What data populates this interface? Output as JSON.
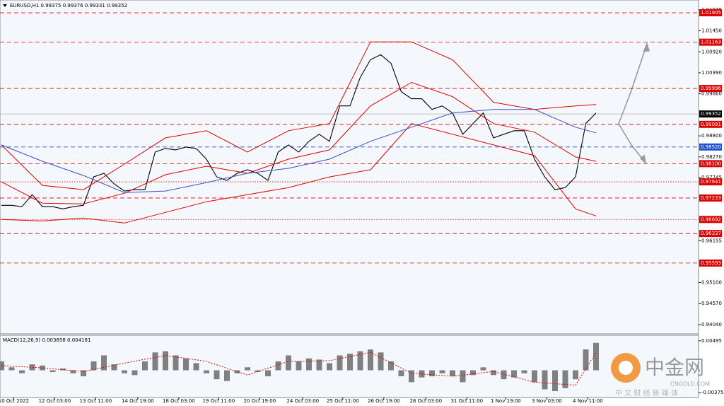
{
  "chart_data": [
    {
      "type": "line",
      "title": "EURUSD,H1  0.99375 0.99376 0.99331 0.99352",
      "xlim": [
        0,
        68
      ],
      "ylim": [
        0.93825,
        1.02209
      ],
      "yticks": [
        1.01976,
        {
          "value": 1.0145,
          "label": "1.01450"
        },
        {
          "value": 1.0092,
          "label": "1.00920"
        },
        {
          "value": 1.0039,
          "label": "1.00390"
        },
        {
          "value": 0.9986,
          "label": "0.99860"
        },
        {
          "value": 0.988,
          "label": "0.98800"
        },
        {
          "value": 0.9827,
          "label": "0.98270"
        },
        0.97745,
        0.96155,
        {
          "value": 0.951,
          "label": "0.95100"
        },
        {
          "value": 0.9457,
          "label": "0.94570"
        },
        {
          "value": 0.9404,
          "label": "0.94040"
        }
      ],
      "x": [
        0,
        1,
        2,
        3,
        4,
        5,
        6,
        7,
        8,
        9,
        10,
        11,
        12,
        13,
        14,
        15,
        16,
        17,
        18,
        19,
        20,
        21,
        22,
        23,
        24,
        25,
        26,
        27,
        28,
        29,
        30,
        31,
        32,
        33,
        34,
        35,
        36,
        37,
        38,
        39,
        40,
        41,
        42,
        43,
        44,
        45,
        46,
        47,
        48,
        49,
        50,
        51,
        52,
        53,
        54,
        55,
        56,
        57,
        58
      ],
      "series": [
        {
          "color": "#000000",
          "values": [
            0.97049,
            0.97049,
            0.97014,
            0.97318,
            0.97014,
            0.97014,
            0.9696,
            0.97014,
            0.97049,
            0.97766,
            0.97856,
            0.97587,
            0.97408,
            0.97444,
            0.97444,
            0.98393,
            0.98483,
            0.98447,
            0.98518,
            0.98483,
            0.98214,
            0.97766,
            0.97676,
            0.97856,
            0.97945,
            0.97856,
            0.97676,
            0.98393,
            0.98572,
            0.98393,
            0.98662,
            0.98841,
            0.98662,
            0.99557,
            0.99557,
            1.00274,
            1.00722,
            1.00847,
            1.00632,
            0.99916,
            0.99737,
            0.99737,
            0.99468,
            0.99557,
            0.99378,
            0.98841,
            0.9911,
            0.99378,
            0.98751,
            0.98841,
            0.9893,
            0.9893,
            0.98214,
            0.97766,
            0.97444,
            0.97497,
            0.97766,
            0.9911,
            0.99378
          ]
        },
        {
          "color": "#e00000",
          "x": [
            0,
            4,
            8,
            12,
            16,
            20,
            24,
            28,
            32,
            36,
            40,
            44,
            48,
            52,
            56,
            58
          ],
          "values": [
            0.98572,
            0.97551,
            0.97444,
            0.98088,
            0.98751,
            0.9893,
            0.98393,
            0.9893,
            0.9911,
            1.0117,
            1.0117,
            1.00722,
            0.99647,
            0.99468,
            0.99557,
            0.99593
          ]
        },
        {
          "color": "#e00000",
          "x": [
            0,
            4,
            8,
            12,
            16,
            20,
            24,
            28,
            32,
            36,
            40,
            44,
            48,
            52,
            56,
            58
          ],
          "values": [
            0.96691,
            0.96655,
            0.96727,
            0.96602,
            0.9687,
            0.97139,
            0.97318,
            0.97497,
            0.97766,
            0.97945,
            0.9911,
            0.98841,
            0.98572,
            0.98303,
            0.9696,
            0.96781
          ]
        },
        {
          "color": "#e00000",
          "x": [
            0,
            4,
            8,
            12,
            16,
            20,
            24,
            28,
            32,
            36,
            40,
            44,
            48,
            52,
            56,
            58
          ],
          "values": [
            0.97641,
            0.97103,
            0.97085,
            0.97354,
            0.9782,
            0.98035,
            0.97856,
            0.98214,
            0.98447,
            0.99557,
            1.00149,
            0.9979,
            0.9911,
            0.98895,
            0.98268,
            0.9816
          ]
        },
        {
          "color": "#3a4ec8",
          "x": [
            0,
            4,
            8,
            12,
            16,
            20,
            24,
            28,
            32,
            36,
            40,
            44,
            48,
            52,
            56,
            58
          ],
          "values": [
            0.98572,
            0.9816,
            0.97802,
            0.97372,
            0.97408,
            0.97623,
            0.97856,
            0.97981,
            0.98214,
            0.98662,
            0.9902,
            0.99378,
            0.99468,
            0.99468,
            0.9902,
            0.98877
          ]
        }
      ],
      "levels": [
        {
          "value": 1.01905,
          "color": "#e00000",
          "style": "dashed"
        },
        {
          "value": 1.01163,
          "color": "#e00000",
          "style": "dashed"
        },
        {
          "value": 0.99996,
          "color": "#e00000",
          "style": "dashed"
        },
        {
          "value": 0.99352,
          "color": "#000000",
          "style": "solid"
        },
        {
          "value": 0.99091,
          "color": "#e00000",
          "style": "dashed"
        },
        {
          "value": 0.9852,
          "label": "0.98520",
          "color": "#1f4fd6",
          "style": "dashed"
        },
        {
          "value": 0.981,
          "label": "0.98100",
          "color": "#e00000",
          "style": "dashed"
        },
        {
          "value": 0.97641,
          "color": "#e00000",
          "style": "dotted"
        },
        {
          "value": 0.97233,
          "color": "#e00000",
          "style": "dashed"
        },
        {
          "value": 0.96692,
          "color": "#e00000",
          "style": "dotted"
        },
        {
          "value": 0.96337,
          "color": "#e00000",
          "style": "dashed"
        },
        {
          "value": 0.95593,
          "color": "#e00000",
          "style": "dashed"
        }
      ]
    },
    {
      "type": "bar",
      "title": "MACD(12,26,9) 0.003858 0.004181",
      "xlim": [
        0,
        68
      ],
      "ylim": [
        -0.00445,
        0.00576
      ],
      "yticks": [
        0.00495,
        -0.003755
      ],
      "color": "#808080",
      "x": [
        0,
        1,
        2,
        3,
        4,
        5,
        6,
        7,
        8,
        9,
        10,
        11,
        12,
        13,
        14,
        15,
        16,
        17,
        18,
        19,
        20,
        21,
        22,
        23,
        24,
        25,
        26,
        27,
        28,
        29,
        30,
        31,
        32,
        33,
        34,
        35,
        36,
        37,
        38,
        39,
        40,
        41,
        42,
        43,
        44,
        45,
        46,
        47,
        48,
        49,
        50,
        51,
        52,
        53,
        54,
        55,
        56,
        57,
        58
      ],
      "values": [
        0.0015,
        0.0005,
        -0.0005,
        0.001,
        0.0008,
        -0.0003,
        0.0003,
        -0.0005,
        -0.001,
        0.0015,
        0.0025,
        0.001,
        -0.0005,
        -0.0008,
        0.0015,
        0.003,
        0.0032,
        0.0025,
        0.002,
        0.0012,
        -0.0005,
        -0.0015,
        -0.0018,
        -0.0005,
        0.0005,
        -0.0003,
        -0.001,
        0.0015,
        0.0025,
        0.0015,
        0.002,
        0.0018,
        0.0012,
        0.0025,
        0.0028,
        0.0032,
        0.0035,
        0.003,
        0.0015,
        -0.001,
        -0.002,
        -0.0012,
        -0.001,
        -0.0005,
        -0.001,
        -0.002,
        -0.0008,
        0.0005,
        -0.0008,
        -0.0015,
        -0.0012,
        -0.0005,
        -0.002,
        -0.0032,
        -0.0035,
        -0.003,
        -0.0015,
        0.0035,
        0.0046
      ],
      "signal": {
        "color": "#e00000",
        "x": [
          0,
          4,
          8,
          12,
          16,
          20,
          24,
          28,
          32,
          36,
          40,
          44,
          48,
          52,
          56,
          58
        ],
        "values": [
          0.0008,
          0.0004,
          -0.0002,
          0.0012,
          0.0025,
          0.0015,
          -0.0008,
          0.0015,
          0.0016,
          0.003,
          -0.0005,
          -0.001,
          -0.0002,
          -0.002,
          -0.0025,
          0.003
        ]
      },
      "xticks": [
        {
          "value": 1.2,
          "label": "10 Oct 2022"
        },
        {
          "value": 5.2,
          "label": "12 Oct 03:00"
        },
        {
          "value": 9.2,
          "label": "13 Oct 11:00"
        },
        {
          "value": 13.3,
          "label": "14 Oct 19:00"
        },
        {
          "value": 17.3,
          "label": "18 Oct 03:00"
        },
        {
          "value": 21.2,
          "label": "19 Oct 11:00"
        },
        {
          "value": 25.2,
          "label": "20 Oct 19:00"
        },
        {
          "value": 29.4,
          "label": "24 Oct 03:00"
        },
        {
          "value": 33.3,
          "label": "25 Oct 11:00"
        },
        {
          "value": 37.3,
          "label": "26 Oct 19:00"
        },
        {
          "value": 41.4,
          "label": "28 Oct 03:00"
        },
        {
          "value": 45.4,
          "label": "31 Oct 11:00"
        },
        {
          "value": 49.2,
          "label": "1 Nov 19:00"
        },
        {
          "value": 53.2,
          "label": "3 Nov 03:00"
        },
        {
          "value": 57.2,
          "label": "4 Nov 11:00"
        }
      ]
    }
  ],
  "watermark": {
    "brand": "中金网",
    "site": "CNGOLD.COM",
    "tagline": "中 文 财 经 新 媒 体"
  }
}
